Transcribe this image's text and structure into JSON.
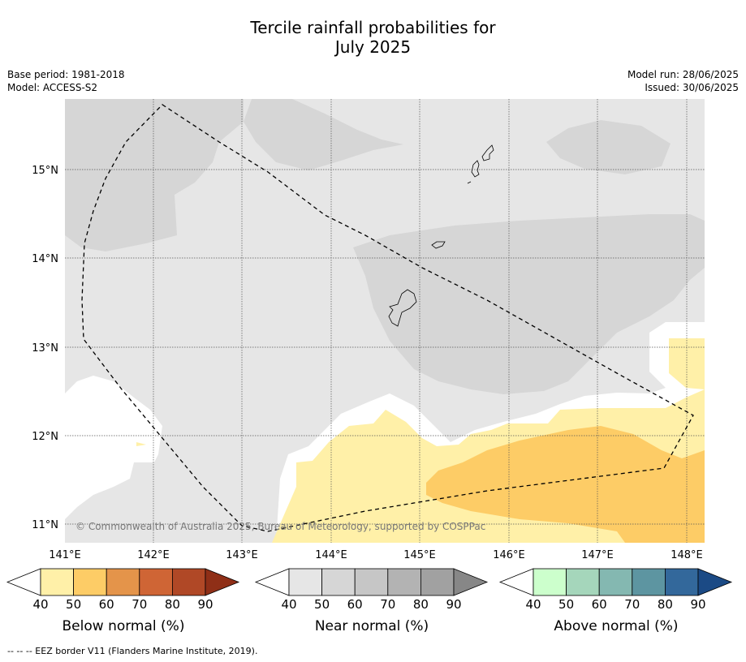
{
  "title_line1": "Tercile rainfall probabilities for",
  "title_line2": "July 2025",
  "meta_left": {
    "base_period": "Base period: 1981-2018",
    "model": "Model: ACCESS-S2"
  },
  "meta_right": {
    "model_run": "Model run: 28/06/2025",
    "issued": "Issued: 30/06/2025"
  },
  "lat_labels": [
    "15°N",
    "14°N",
    "13°N",
    "12°N",
    "11°N"
  ],
  "lon_labels": [
    "141°E",
    "142°E",
    "143°E",
    "144°E",
    "145°E",
    "146°E",
    "147°E",
    "148°E"
  ],
  "copyright": "© Commonwealth of Australia 2025, Bureau of Meteorology, supported by COSPPac",
  "colorbars": [
    {
      "label": "Below normal (%)",
      "ticks": [
        "40",
        "50",
        "60",
        "70",
        "80",
        "90"
      ],
      "colors": [
        "#fff0a8",
        "#fdcc66",
        "#e4944a",
        "#cf6535",
        "#b04826",
        "#8f2f17"
      ]
    },
    {
      "label": "Near normal (%)",
      "ticks": [
        "40",
        "50",
        "60",
        "70",
        "80",
        "90"
      ],
      "colors": [
        "#e6e6e6",
        "#d6d6d6",
        "#c6c6c6",
        "#b3b3b3",
        "#a1a1a1",
        "#878787"
      ]
    },
    {
      "label": "Above normal (%)",
      "ticks": [
        "40",
        "50",
        "60",
        "70",
        "80",
        "90"
      ],
      "colors": [
        "#ccffcc",
        "#a5d6bb",
        "#84b8b1",
        "#5d95a1",
        "#33689b",
        "#1b4a85"
      ]
    }
  ],
  "footnote": "--  --  -- EEZ border V11 (Flanders Marine Institute, 2019)."
}
